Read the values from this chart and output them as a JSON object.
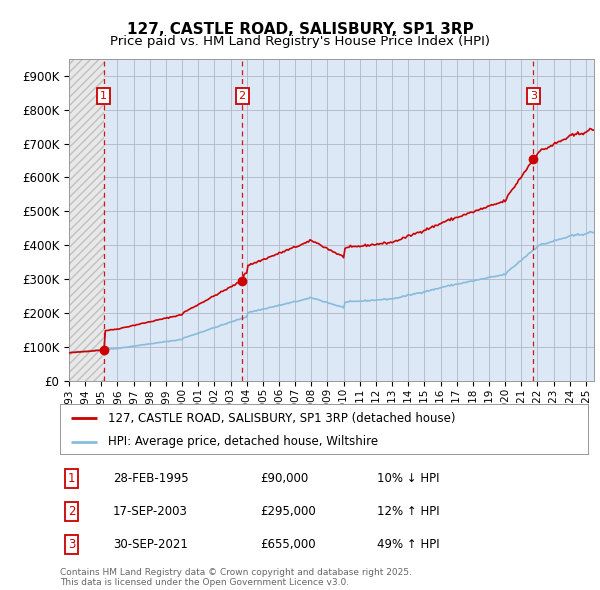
{
  "title": "127, CASTLE ROAD, SALISBURY, SP1 3RP",
  "subtitle": "Price paid vs. HM Land Registry's House Price Index (HPI)",
  "ylim": [
    0,
    950000
  ],
  "yticks": [
    0,
    100000,
    200000,
    300000,
    400000,
    500000,
    600000,
    700000,
    800000,
    900000
  ],
  "ytick_labels": [
    "£0",
    "£100K",
    "£200K",
    "£300K",
    "£400K",
    "£500K",
    "£600K",
    "£700K",
    "£800K",
    "£900K"
  ],
  "xlim_start": 1993.0,
  "xlim_end": 2025.5,
  "transactions": [
    {
      "date_num": 1995.15,
      "price": 90000,
      "label": "1"
    },
    {
      "date_num": 2003.72,
      "price": 295000,
      "label": "2"
    },
    {
      "date_num": 2021.75,
      "price": 655000,
      "label": "3"
    }
  ],
  "transaction_annotations": [
    {
      "label": "1",
      "date": "28-FEB-1995",
      "price": "£90,000",
      "change": "10% ↓ HPI"
    },
    {
      "label": "2",
      "date": "17-SEP-2003",
      "price": "£295,000",
      "change": "12% ↑ HPI"
    },
    {
      "label": "3",
      "date": "30-SEP-2021",
      "price": "£655,000",
      "change": "49% ↑ HPI"
    }
  ],
  "legend_label_price": "127, CASTLE ROAD, SALISBURY, SP1 3RP (detached house)",
  "legend_label_hpi": "HPI: Average price, detached house, Wiltshire",
  "footer": "Contains HM Land Registry data © Crown copyright and database right 2025.\nThis data is licensed under the Open Government Licence v3.0.",
  "bg_color": "#dce8f5",
  "hatch_face_color": "#e8e8e8",
  "hatch_edge_color": "#c0c0c0",
  "grid_color": "#b0b8c8",
  "transaction_line_color": "#cc0000",
  "box_color": "#cc0000",
  "hpi_line_color": "#88bbdd",
  "price_line_color": "#cc0000"
}
